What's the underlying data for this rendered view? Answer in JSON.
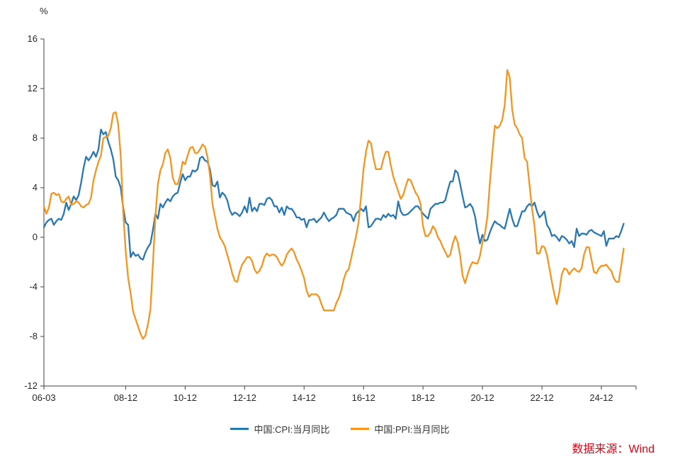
{
  "chart_data": {
    "type": "line",
    "title": "",
    "ylabel": "%",
    "xlabel": "",
    "x_start": "2006-03",
    "frequency": "monthly",
    "grid": false,
    "legend_position": "bottom",
    "y_axis": {
      "min": -12,
      "max": 16,
      "tick_step": 4,
      "ticks": [
        16,
        12,
        8,
        4,
        0,
        -4,
        -8,
        -12
      ]
    },
    "x_axis": {
      "tick_labels": [
        "06-03",
        "08-12",
        "10-12",
        "12-12",
        "14-12",
        "16-12",
        "18-12",
        "20-12",
        "22-12",
        "24-12"
      ],
      "tick_month_indices": [
        0,
        33,
        57,
        81,
        105,
        129,
        153,
        177,
        201,
        225
      ],
      "total_months": 240
    },
    "series": [
      {
        "name": "中国:CPI:当月同比",
        "color": "#2878B5",
        "values": [
          0.8,
          1.2,
          1.4,
          1.5,
          1.0,
          1.3,
          1.5,
          1.4,
          1.9,
          2.8,
          2.2,
          2.7,
          3.3,
          3.0,
          3.4,
          4.4,
          5.6,
          6.5,
          6.2,
          6.5,
          6.9,
          6.5,
          7.1,
          8.7,
          8.3,
          8.5,
          7.7,
          7.1,
          6.3,
          4.9,
          4.6,
          4.0,
          2.4,
          1.2,
          1.0,
          -1.6,
          -1.2,
          -1.5,
          -1.4,
          -1.7,
          -1.8,
          -1.2,
          -0.8,
          -0.5,
          0.6,
          1.9,
          1.5,
          2.7,
          2.4,
          2.8,
          3.1,
          2.9,
          3.3,
          3.5,
          3.6,
          4.4,
          5.1,
          4.6,
          4.9,
          4.9,
          5.4,
          5.3,
          5.5,
          6.4,
          6.5,
          6.2,
          6.1,
          5.5,
          4.2,
          4.1,
          4.5,
          3.2,
          3.6,
          3.4,
          3.0,
          2.2,
          1.8,
          2.0,
          1.9,
          1.7,
          2.0,
          2.5,
          2.0,
          3.2,
          2.1,
          2.4,
          2.1,
          2.7,
          2.7,
          2.6,
          3.1,
          3.2,
          3.0,
          2.5,
          2.5,
          2.0,
          2.4,
          1.8,
          2.5,
          2.3,
          2.3,
          2.0,
          1.6,
          1.6,
          1.4,
          1.5,
          0.8,
          1.4,
          1.4,
          1.5,
          1.2,
          1.4,
          1.6,
          2.0,
          1.6,
          1.3,
          1.5,
          1.6,
          1.8,
          2.3,
          2.3,
          2.3,
          2.0,
          1.9,
          1.8,
          1.3,
          1.9,
          2.1,
          2.3,
          2.1,
          2.5,
          0.8,
          0.9,
          1.2,
          1.5,
          1.5,
          1.4,
          1.8,
          1.6,
          1.9,
          1.7,
          1.8,
          1.5,
          2.9,
          2.1,
          1.8,
          1.8,
          1.9,
          2.1,
          2.3,
          2.5,
          2.5,
          2.2,
          1.9,
          1.7,
          1.5,
          2.3,
          2.5,
          2.7,
          2.7,
          2.8,
          2.8,
          3.0,
          3.8,
          4.5,
          4.5,
          5.4,
          5.2,
          4.3,
          3.3,
          2.4,
          2.5,
          2.7,
          2.4,
          1.7,
          0.5,
          -0.5,
          0.2,
          -0.3,
          -0.2,
          0.4,
          0.9,
          1.3,
          1.1,
          1.0,
          0.8,
          0.7,
          1.5,
          2.3,
          1.5,
          0.9,
          0.9,
          1.5,
          2.1,
          2.1,
          2.5,
          2.7,
          2.5,
          2.8,
          2.1,
          1.6,
          1.8,
          2.1,
          1.0,
          0.7,
          0.1,
          0.2,
          0.0,
          -0.3,
          0.1,
          0.0,
          -0.2,
          -0.5,
          -0.3,
          -0.8,
          0.7,
          0.1,
          0.3,
          0.3,
          0.2,
          0.5,
          0.6,
          0.4,
          0.3,
          0.2,
          0.1,
          0.5,
          -0.7,
          -0.1,
          -0.1,
          -0.1,
          0.1,
          0.0,
          0.5,
          1.1
        ]
      },
      {
        "name": "中国:PPI:当月同比",
        "color": "#F7941E",
        "values": [
          2.5,
          1.9,
          2.4,
          3.5,
          3.6,
          3.4,
          3.5,
          2.9,
          2.8,
          3.1,
          3.3,
          2.6,
          2.7,
          2.9,
          2.8,
          2.5,
          2.4,
          2.6,
          2.7,
          3.2,
          4.6,
          5.4,
          6.1,
          6.6,
          8.0,
          8.1,
          8.2,
          8.8,
          10.0,
          10.1,
          9.1,
          6.6,
          2.0,
          -1.1,
          -3.3,
          -4.5,
          -6.0,
          -6.6,
          -7.2,
          -7.8,
          -8.2,
          -7.9,
          -7.0,
          -5.8,
          -2.1,
          1.7,
          4.3,
          5.4,
          5.9,
          6.8,
          7.1,
          6.4,
          4.8,
          4.3,
          4.3,
          5.0,
          6.1,
          5.9,
          6.6,
          7.2,
          7.3,
          6.8,
          6.8,
          7.1,
          7.5,
          7.3,
          6.5,
          5.0,
          2.7,
          1.7,
          0.7,
          0.0,
          -0.3,
          -0.7,
          -1.4,
          -2.1,
          -2.9,
          -3.5,
          -3.6,
          -2.8,
          -2.2,
          -1.9,
          -1.6,
          -1.6,
          -1.9,
          -2.6,
          -2.9,
          -2.7,
          -2.3,
          -1.6,
          -1.3,
          -1.5,
          -1.4,
          -1.4,
          -1.6,
          -2.0,
          -2.3,
          -2.0,
          -1.4,
          -1.1,
          -0.9,
          -1.2,
          -1.8,
          -2.2,
          -2.7,
          -3.3,
          -4.3,
          -4.8,
          -4.6,
          -4.6,
          -4.6,
          -4.8,
          -5.4,
          -5.9,
          -5.9,
          -5.9,
          -5.9,
          -5.9,
          -5.3,
          -4.9,
          -4.3,
          -3.4,
          -2.8,
          -2.6,
          -1.7,
          -0.8,
          0.1,
          1.2,
          3.3,
          5.5,
          6.9,
          7.8,
          7.6,
          6.4,
          5.5,
          5.5,
          5.5,
          6.3,
          6.9,
          6.9,
          5.8,
          4.9,
          4.3,
          3.7,
          3.1,
          3.4,
          4.1,
          4.7,
          4.6,
          4.1,
          3.6,
          3.3,
          2.7,
          0.9,
          0.1,
          0.1,
          0.4,
          0.9,
          0.6,
          0.0,
          -0.3,
          -0.8,
          -1.2,
          -1.6,
          -1.4,
          -0.5,
          0.1,
          -0.4,
          -1.5,
          -3.1,
          -3.7,
          -3.0,
          -2.4,
          -2.0,
          -2.1,
          -2.1,
          -1.5,
          -0.4,
          0.3,
          1.7,
          4.4,
          6.8,
          9.0,
          8.8,
          9.0,
          9.5,
          10.7,
          13.5,
          12.9,
          10.3,
          9.1,
          8.8,
          8.3,
          8.0,
          6.4,
          6.1,
          4.2,
          2.3,
          0.9,
          -1.3,
          -1.3,
          -0.7,
          -0.8,
          -1.4,
          -2.5,
          -3.6,
          -4.6,
          -5.4,
          -4.4,
          -3.0,
          -2.5,
          -2.6,
          -3.0,
          -2.7,
          -2.5,
          -2.7,
          -2.8,
          -2.5,
          -1.4,
          -0.8,
          -0.8,
          -1.8,
          -2.8,
          -2.9,
          -2.5,
          -2.3,
          -2.3,
          -2.2,
          -2.5,
          -2.7,
          -3.3,
          -3.6,
          -3.6,
          -2.3,
          -0.9
        ]
      }
    ]
  },
  "source_note": "数据来源：Wind",
  "colors": {
    "axis": "#404040",
    "text": "#262626",
    "cpi_line": "#2878B5",
    "ppi_line": "#F7941E",
    "source_text": "#E60012"
  }
}
